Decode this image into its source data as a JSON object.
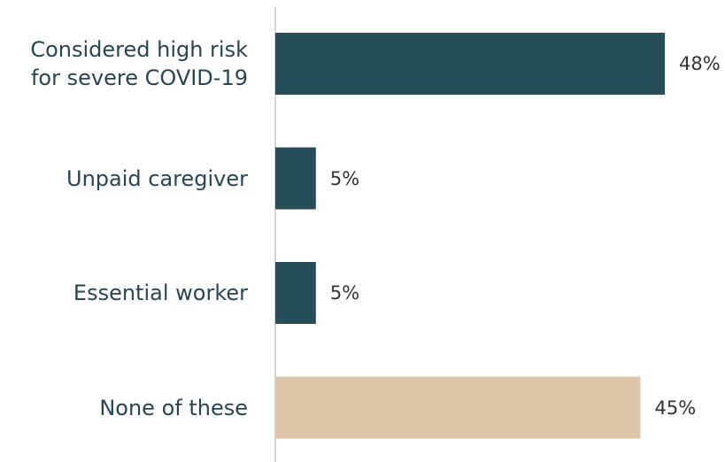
{
  "chart_data": {
    "type": "bar",
    "orientation": "horizontal",
    "categories": [
      "Considered high risk for severe COVID-19",
      "Unpaid caregiver",
      "Essential worker",
      "None of these"
    ],
    "values": [
      48,
      5,
      5,
      45
    ],
    "value_labels": [
      "48%",
      "5%",
      "5%",
      "45%"
    ],
    "colors": [
      "#264d5a",
      "#264d5a",
      "#264d5a",
      "#dfc5aa"
    ]
  }
}
